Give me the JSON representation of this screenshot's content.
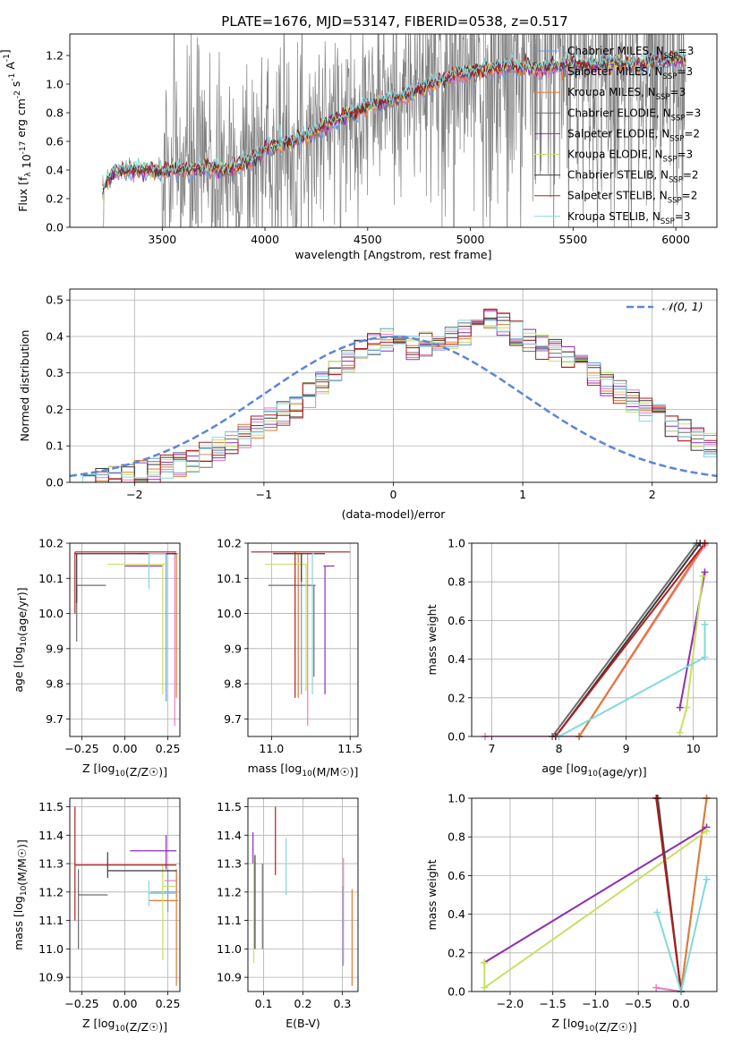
{
  "figure_title": "PLATE=1676, MJD=53147, FIBERID=0538, z=0.517",
  "models": [
    {
      "name": "Chabrier MILES",
      "nssp": "3",
      "color": "#5f9de0"
    },
    {
      "name": "Salpeter MILES",
      "nssp": "3",
      "color": "#e77fc1"
    },
    {
      "name": "Kroupa MILES",
      "nssp": "3",
      "color": "#e6782e"
    },
    {
      "name": "Chabrier ELODIE",
      "nssp": "3",
      "color": "#6d6d6d"
    },
    {
      "name": "Salpeter ELODIE",
      "nssp": "2",
      "color": "#8e2eb1"
    },
    {
      "name": "Kroupa ELODIE",
      "nssp": "3",
      "color": "#c8e064"
    },
    {
      "name": "Chabrier STELIB",
      "nssp": "2",
      "color": "#3a3a3a"
    },
    {
      "name": "Salpeter STELIB",
      "nssp": "2",
      "color": "#b01e1e"
    },
    {
      "name": "Kroupa STELIB",
      "nssp": "3",
      "color": "#80d9dc"
    }
  ],
  "chart_data": [
    {
      "id": "spectrum",
      "type": "line",
      "xlabel": "wavelength [Angstrom, rest frame]",
      "ylabel": "Flux [f_λ 10^{-17} erg cm^{-2} s^{-1} A^{-1}]",
      "xlim": [
        3050,
        6200
      ],
      "ylim": [
        0,
        1.35
      ],
      "xticks": [
        "3500",
        "4000",
        "4500",
        "5000",
        "5500",
        "6000"
      ],
      "yticks": [
        "0.0",
        "0.2",
        "0.4",
        "0.6",
        "0.8",
        "1.0",
        "1.2"
      ],
      "data_color": "#808080",
      "data_wavelength_range": [
        3210,
        6050
      ],
      "model_knots": {
        "x": [
          3210,
          3260,
          3320,
          3400,
          3500,
          3600,
          3700,
          3750,
          3800,
          3900,
          3950,
          4000,
          4100,
          4200,
          4300,
          4400,
          4500,
          4600,
          4700,
          4800,
          4850,
          4900,
          5000,
          5100,
          5200,
          5300,
          5400,
          5500,
          5600,
          5700,
          5800,
          5900,
          6000,
          6050
        ],
        "y": [
          0.27,
          0.38,
          0.4,
          0.4,
          0.39,
          0.4,
          0.41,
          0.42,
          0.39,
          0.45,
          0.48,
          0.55,
          0.58,
          0.64,
          0.72,
          0.78,
          0.85,
          0.88,
          0.93,
          0.99,
          1.02,
          1.05,
          1.08,
          1.1,
          1.13,
          1.11,
          1.12,
          1.14,
          1.13,
          1.15,
          1.13,
          1.16,
          1.18,
          1.17
        ]
      }
    },
    {
      "id": "residuals",
      "type": "histogram",
      "xlabel": "(data-model)/error",
      "ylabel": "Normed distribution",
      "xlim": [
        -2.5,
        2.5
      ],
      "ylim": [
        0,
        0.53
      ],
      "xticks": [
        "−2",
        "−1",
        "0",
        "1",
        "2"
      ],
      "yticks": [
        "0.0",
        "0.1",
        "0.2",
        "0.3",
        "0.4",
        "0.5"
      ],
      "bin_width": 0.1,
      "bin_start": -2.5,
      "base_values": [
        0.005,
        0.008,
        0.012,
        0.015,
        0.02,
        0.026,
        0.033,
        0.04,
        0.05,
        0.06,
        0.075,
        0.09,
        0.11,
        0.13,
        0.15,
        0.17,
        0.19,
        0.21,
        0.24,
        0.27,
        0.3,
        0.33,
        0.36,
        0.38,
        0.39,
        0.38,
        0.37,
        0.38,
        0.39,
        0.4,
        0.41,
        0.42,
        0.44,
        0.43,
        0.41,
        0.39,
        0.37,
        0.36,
        0.34,
        0.32,
        0.3,
        0.27,
        0.25,
        0.22,
        0.2,
        0.18,
        0.16,
        0.14,
        0.12,
        0.1,
        0.085,
        0.07,
        0.06,
        0.05,
        0.045,
        0.04,
        0.035,
        0.035
      ],
      "legend": "𝒩(0, 1)",
      "legend_position": "top-right",
      "gaussian_color": "#5b86d6"
    },
    {
      "id": "z_age",
      "type": "errorbar",
      "xlabel": "Z [log10(Z/Z☉)]",
      "ylabel": "age [log10(age/yr)]",
      "xlim": [
        -0.32,
        0.32
      ],
      "ylim": [
        9.65,
        10.2
      ],
      "xticks": [
        "−0.25",
        "0.00",
        "0.25"
      ],
      "yticks": [
        "9.7",
        "9.8",
        "9.9",
        "10.0",
        "10.1",
        "10.2"
      ],
      "points": [
        {
          "model": 0,
          "x": 0.24,
          "y": 10.17,
          "x_lo": 0.07,
          "x_hi": 0.29,
          "y_lo": 9.75,
          "y_hi": 10.17
        },
        {
          "model": 1,
          "x": 0.29,
          "y": 10.17,
          "x_lo": 0.12,
          "x_hi": 0.3,
          "y_lo": 9.68,
          "y_hi": 10.17
        },
        {
          "model": 2,
          "x": 0.3,
          "y": 10.17,
          "x_lo": 0.28,
          "x_hi": 0.31,
          "y_lo": 9.76,
          "y_hi": 10.17
        },
        {
          "model": 3,
          "x": -0.28,
          "y": 10.08,
          "x_lo": -0.28,
          "x_hi": -0.11,
          "y_lo": 9.92,
          "y_hi": 10.08
        },
        {
          "model": 4,
          "x": 0.0,
          "y": 10.135,
          "x_lo": 0.0,
          "x_hi": 0.22,
          "y_lo": 10.135,
          "y_hi": 10.135
        },
        {
          "model": 5,
          "x": 0.22,
          "y": 10.14,
          "x_lo": -0.1,
          "x_hi": 0.25,
          "y_lo": 9.77,
          "y_hi": 10.14
        },
        {
          "model": 6,
          "x": -0.28,
          "y": 10.17,
          "x_lo": -0.29,
          "x_hi": 0.3,
          "y_lo": 10.03,
          "y_hi": 10.17
        },
        {
          "model": 7,
          "x": -0.29,
          "y": 10.175,
          "x_lo": -0.29,
          "x_hi": 0.3,
          "y_lo": 10.0,
          "y_hi": 10.175
        },
        {
          "model": 8,
          "x": 0.14,
          "y": 10.17,
          "x_lo": 0.14,
          "x_hi": 0.24,
          "y_lo": 10.07,
          "y_hi": 10.17
        }
      ]
    },
    {
      "id": "mass_age",
      "type": "errorbar",
      "xlabel": "mass [log10(M/M☉)]",
      "ylabel": "",
      "xlim": [
        10.85,
        11.55
      ],
      "ylim": [
        9.65,
        10.2
      ],
      "xticks": [
        "11.0",
        "11.5"
      ],
      "yticks": [
        "9.7",
        "9.8",
        "9.9",
        "10.0",
        "10.1",
        "10.2"
      ],
      "points": [
        {
          "model": 0,
          "x": 11.19,
          "y": 10.17,
          "x_lo": 11.19,
          "x_hi": 11.2,
          "y_lo": 9.77,
          "y_hi": 10.17
        },
        {
          "model": 1,
          "x": 11.23,
          "y": 10.17,
          "x_lo": 11.23,
          "x_hi": 11.24,
          "y_lo": 9.68,
          "y_hi": 10.17
        },
        {
          "model": 2,
          "x": 11.17,
          "y": 10.17,
          "x_lo": 11.17,
          "x_hi": 11.18,
          "y_lo": 9.76,
          "y_hi": 10.17
        },
        {
          "model": 3,
          "x": 11.27,
          "y": 10.08,
          "x_lo": 10.98,
          "x_hi": 11.28,
          "y_lo": 9.82,
          "y_hi": 10.08
        },
        {
          "model": 4,
          "x": 11.34,
          "y": 10.135,
          "x_lo": 11.33,
          "x_hi": 11.4,
          "y_lo": 9.77,
          "y_hi": 10.135
        },
        {
          "model": 5,
          "x": 11.22,
          "y": 10.14,
          "x_lo": 10.96,
          "x_hi": 11.23,
          "y_lo": 9.78,
          "y_hi": 10.14
        },
        {
          "model": 6,
          "x": 11.19,
          "y": 10.17,
          "x_lo": 11.01,
          "x_hi": 11.34,
          "y_lo": 10.09,
          "y_hi": 10.17
        },
        {
          "model": 7,
          "x": 11.15,
          "y": 10.175,
          "x_lo": 10.87,
          "x_hi": 11.5,
          "y_lo": 9.76,
          "y_hi": 10.175
        },
        {
          "model": 8,
          "x": 11.26,
          "y": 10.17,
          "x_lo": 11.26,
          "x_hi": 11.27,
          "y_lo": 9.77,
          "y_hi": 10.17
        }
      ]
    },
    {
      "id": "age_weight",
      "type": "line",
      "xlabel": "age [log10(age/yr)]",
      "ylabel": "mass weight",
      "xlim": [
        6.7,
        10.35
      ],
      "ylim": [
        0,
        1.0
      ],
      "xticks": [
        "7",
        "8",
        "9",
        "10"
      ],
      "yticks": [
        "0.0",
        "0.2",
        "0.4",
        "0.6",
        "0.8",
        "1.0"
      ],
      "series": [
        {
          "model": 0,
          "x": [
            8.3,
            10.17
          ],
          "y": [
            0.0,
            1.0
          ]
        },
        {
          "model": 1,
          "x": [
            6.9,
            8.3,
            10.17
          ],
          "y": [
            0.0,
            0.0,
            0.99
          ]
        },
        {
          "model": 2,
          "x": [
            8.3,
            10.17
          ],
          "y": [
            0.0,
            1.0
          ]
        },
        {
          "model": 3,
          "x": [
            7.9,
            10.05
          ],
          "y": [
            0.0,
            1.0
          ]
        },
        {
          "model": 4,
          "x": [
            9.8,
            10.17
          ],
          "y": [
            0.15,
            0.85
          ]
        },
        {
          "model": 5,
          "x": [
            9.8,
            9.9,
            10.14
          ],
          "y": [
            0.02,
            0.15,
            0.83
          ]
        },
        {
          "model": 6,
          "x": [
            7.95,
            10.1
          ],
          "y": [
            0.0,
            1.0
          ]
        },
        {
          "model": 7,
          "x": [
            7.95,
            10.17
          ],
          "y": [
            0.0,
            1.0
          ]
        },
        {
          "model": 8,
          "x": [
            8.0,
            10.17,
            10.17
          ],
          "y": [
            0.0,
            0.41,
            0.58
          ]
        }
      ]
    },
    {
      "id": "z_mass",
      "type": "errorbar",
      "xlabel": "Z [log10(Z/Z☉)]",
      "ylabel": "mass [log10(M/M☉)]",
      "xlim": [
        -0.32,
        0.32
      ],
      "ylim": [
        10.85,
        11.53
      ],
      "xticks": [
        "−0.25",
        "0.00",
        "0.25"
      ],
      "yticks": [
        "10.9",
        "11.0",
        "11.1",
        "11.2",
        "11.3",
        "11.4",
        "11.5"
      ],
      "points": [
        {
          "model": 0,
          "x": 0.25,
          "y": 11.2,
          "x_lo": 0.15,
          "x_hi": 0.3,
          "y_lo": 11.13,
          "y_hi": 11.28
        },
        {
          "model": 1,
          "x": 0.3,
          "y": 11.24,
          "x_lo": 0.23,
          "x_hi": 0.3,
          "y_lo": 11.18,
          "y_hi": 11.28
        },
        {
          "model": 2,
          "x": 0.3,
          "y": 11.17,
          "x_lo": 0.14,
          "x_hi": 0.31,
          "y_lo": 10.87,
          "y_hi": 11.28
        },
        {
          "model": 3,
          "x": -0.27,
          "y": 11.19,
          "x_lo": -0.27,
          "x_hi": -0.1,
          "y_lo": 11.0,
          "y_hi": 11.28
        },
        {
          "model": 4,
          "x": 0.24,
          "y": 11.345,
          "x_lo": 0.03,
          "x_hi": 0.3,
          "y_lo": 11.28,
          "y_hi": 11.4
        },
        {
          "model": 5,
          "x": 0.22,
          "y": 11.22,
          "x_lo": 0.22,
          "x_hi": 0.3,
          "y_lo": 10.96,
          "y_hi": 11.3
        },
        {
          "model": 6,
          "x": -0.1,
          "y": 11.275,
          "x_lo": -0.1,
          "x_hi": 0.3,
          "y_lo": 11.25,
          "y_hi": 11.34
        },
        {
          "model": 7,
          "x": -0.29,
          "y": 11.295,
          "x_lo": -0.29,
          "x_hi": 0.3,
          "y_lo": 11.1,
          "y_hi": 11.5
        },
        {
          "model": 8,
          "x": 0.14,
          "y": 11.195,
          "x_lo": 0.14,
          "x_hi": 0.3,
          "y_lo": 11.15,
          "y_hi": 11.24
        }
      ]
    },
    {
      "id": "ebv_mass",
      "type": "errorbar",
      "xlabel": "E(B-V)",
      "ylabel": "",
      "xlim": [
        0.06,
        0.34
      ],
      "ylim": [
        10.85,
        11.53
      ],
      "xticks": [
        "0.1",
        "0.2",
        "0.3"
      ],
      "yticks": [
        "10.9",
        "11.0",
        "11.1",
        "11.2",
        "11.3",
        "11.4",
        "11.5"
      ],
      "points": [
        {
          "model": 0,
          "x": 0.302,
          "y": 11.2,
          "x_lo": 0.302,
          "x_hi": 0.302,
          "y_lo": 10.94,
          "y_hi": 11.22
        },
        {
          "model": 1,
          "x": 0.303,
          "y": 11.25,
          "x_lo": 0.303,
          "x_hi": 0.303,
          "y_lo": 10.95,
          "y_hi": 11.32
        },
        {
          "model": 2,
          "x": 0.325,
          "y": 11.17,
          "x_lo": 0.325,
          "x_hi": 0.325,
          "y_lo": 10.87,
          "y_hi": 11.21
        },
        {
          "model": 3,
          "x": 0.097,
          "y": 11.19,
          "x_lo": 0.097,
          "x_hi": 0.097,
          "y_lo": 11.0,
          "y_hi": 11.3
        },
        {
          "model": 4,
          "x": 0.073,
          "y": 11.345,
          "x_lo": 0.073,
          "x_hi": 0.073,
          "y_lo": 11.3,
          "y_hi": 11.41
        },
        {
          "model": 5,
          "x": 0.075,
          "y": 11.22,
          "x_lo": 0.075,
          "x_hi": 0.075,
          "y_lo": 10.95,
          "y_hi": 11.32
        },
        {
          "model": 6,
          "x": 0.078,
          "y": 11.275,
          "x_lo": 0.078,
          "x_hi": 0.078,
          "y_lo": 11.0,
          "y_hi": 11.33
        },
        {
          "model": 7,
          "x": 0.13,
          "y": 11.38,
          "x_lo": 0.13,
          "x_hi": 0.13,
          "y_lo": 11.26,
          "y_hi": 11.5
        },
        {
          "model": 8,
          "x": 0.157,
          "y": 11.29,
          "x_lo": 0.157,
          "x_hi": 0.157,
          "y_lo": 11.19,
          "y_hi": 11.39
        }
      ]
    },
    {
      "id": "z_weight",
      "type": "line",
      "xlabel": "Z [log10(Z/Z☉)]",
      "ylabel": "mass weight",
      "xlim": [
        -2.45,
        0.42
      ],
      "ylim": [
        0,
        1.0
      ],
      "xticks": [
        "−2.0",
        "−1.5",
        "−1.0",
        "−0.5",
        "0.0"
      ],
      "yticks": [
        "0.0",
        "0.2",
        "0.4",
        "0.6",
        "0.8",
        "1.0"
      ],
      "series": [
        {
          "model": 0,
          "x": [
            0.0,
            0.3
          ],
          "y": [
            0.0,
            1.0
          ]
        },
        {
          "model": 1,
          "x": [
            -0.29,
            0.0
          ],
          "y": [
            0.02,
            0.0
          ]
        },
        {
          "model": 2,
          "x": [
            0.0,
            0.3
          ],
          "y": [
            0.0,
            1.0
          ]
        },
        {
          "model": 3,
          "x": [
            -0.27,
            0.0
          ],
          "y": [
            1.0,
            0.0
          ]
        },
        {
          "model": 4,
          "x": [
            -2.3,
            0.3
          ],
          "y": [
            0.15,
            0.85
          ]
        },
        {
          "model": 5,
          "x": [
            -2.3,
            -2.3,
            0.3
          ],
          "y": [
            0.15,
            0.02,
            0.83
          ]
        },
        {
          "model": 6,
          "x": [
            -0.28,
            0.0
          ],
          "y": [
            1.0,
            0.0
          ]
        },
        {
          "model": 7,
          "x": [
            -0.29,
            0.0
          ],
          "y": [
            1.0,
            0.0
          ]
        },
        {
          "model": 8,
          "x": [
            -0.28,
            0.0,
            0.3
          ],
          "y": [
            0.41,
            0.0,
            0.58
          ]
        }
      ]
    }
  ]
}
